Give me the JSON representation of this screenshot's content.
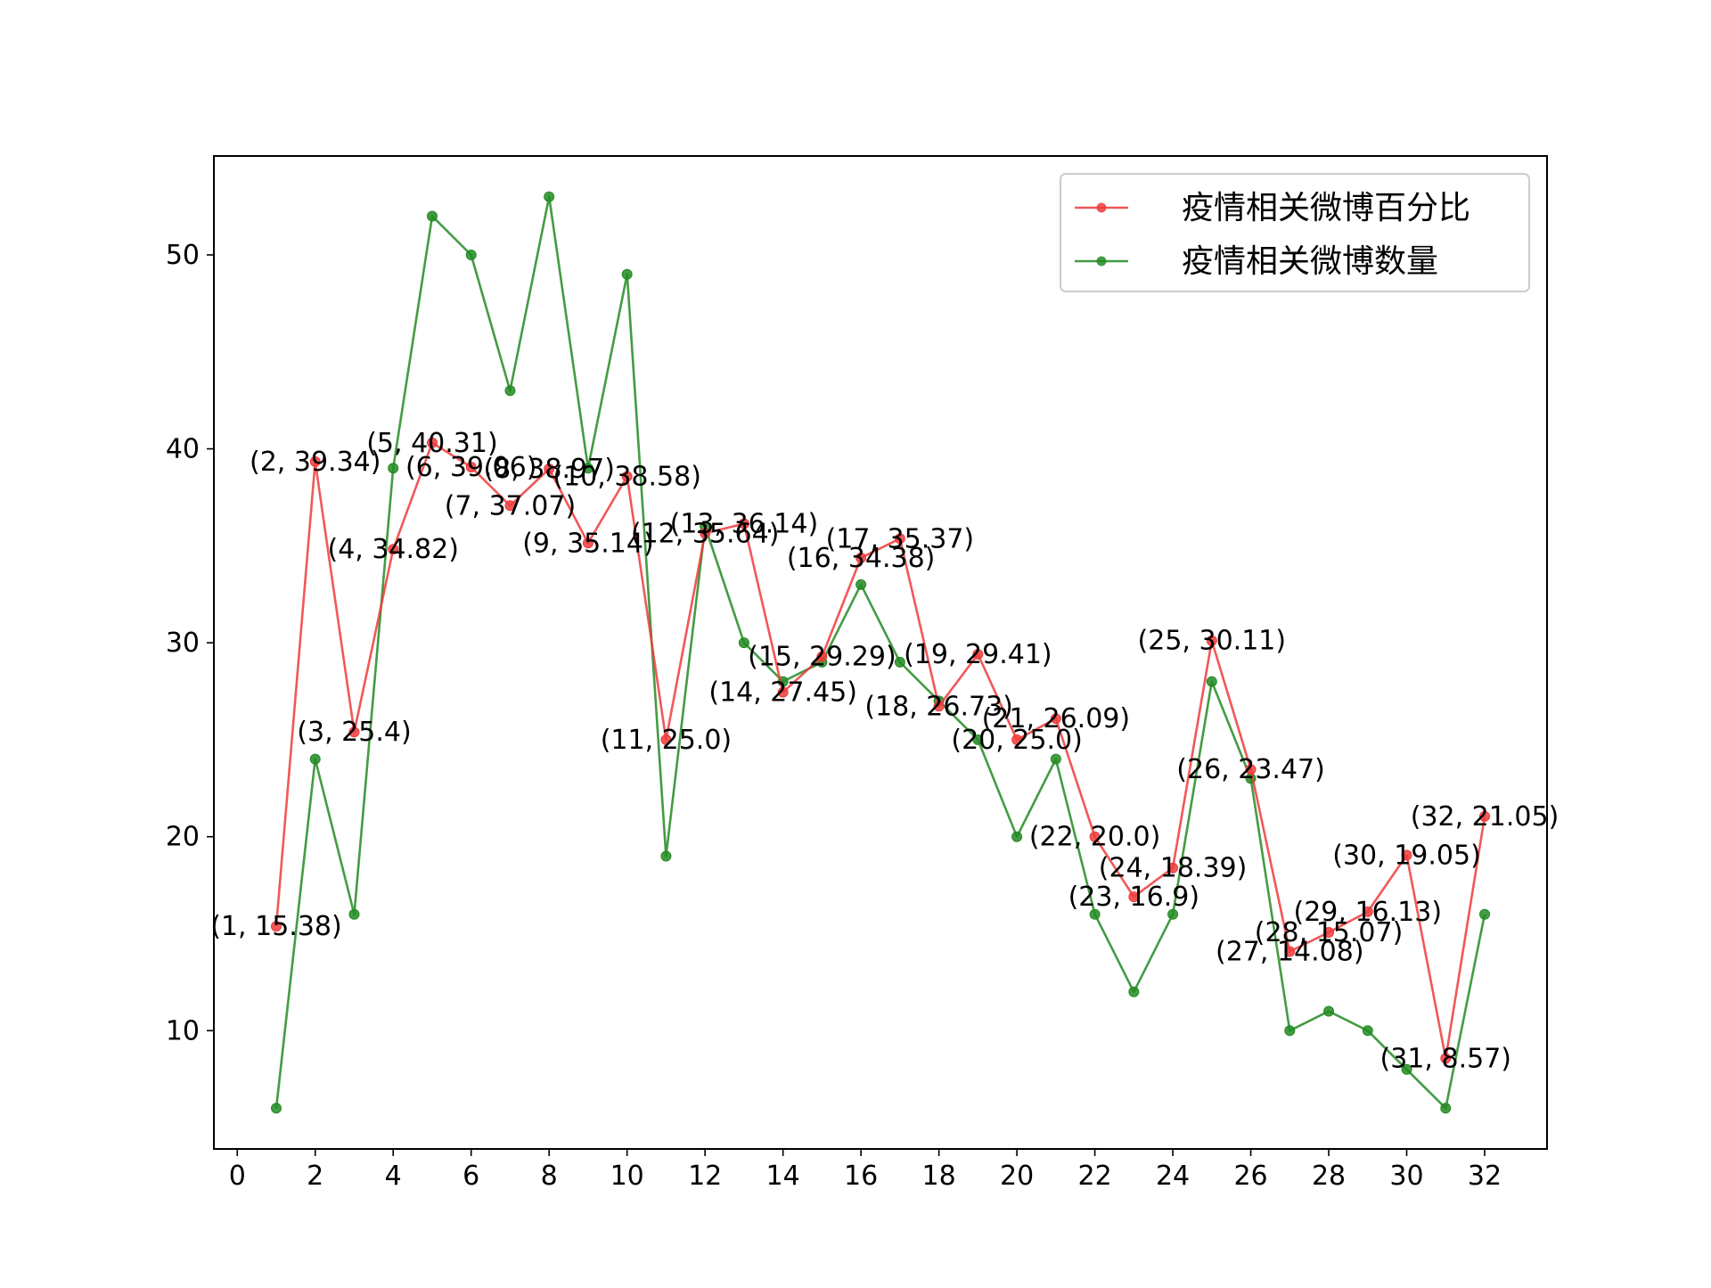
{
  "chart_data": {
    "type": "line",
    "title": "",
    "xlabel": "",
    "ylabel": "",
    "xlim": [
      -0.6,
      33.6
    ],
    "ylim": [
      3.9,
      55.1
    ],
    "xticks": [
      0,
      2,
      4,
      6,
      8,
      10,
      12,
      14,
      16,
      18,
      20,
      22,
      24,
      26,
      28,
      30,
      32
    ],
    "yticks": [
      10,
      20,
      30,
      40,
      50
    ],
    "grid": false,
    "legend_position": "upper right",
    "x": [
      1,
      2,
      3,
      4,
      5,
      6,
      7,
      8,
      9,
      10,
      11,
      12,
      13,
      14,
      15,
      16,
      17,
      18,
      19,
      20,
      21,
      22,
      23,
      24,
      25,
      26,
      27,
      28,
      29,
      30,
      31,
      32
    ],
    "series": [
      {
        "name": "疫情相关微博百分比",
        "color": "#ee3b3b",
        "values": [
          15.38,
          39.34,
          25.4,
          34.82,
          40.31,
          39.06,
          37.07,
          38.97,
          35.14,
          38.58,
          25.0,
          35.64,
          36.14,
          27.45,
          29.29,
          34.38,
          35.37,
          26.73,
          29.41,
          25.0,
          26.09,
          20.0,
          16.9,
          18.39,
          30.11,
          23.47,
          14.08,
          15.07,
          16.13,
          19.05,
          8.57,
          21.05
        ],
        "point_labels": [
          "(1, 15.38)",
          "(2, 39.34)",
          "(3, 25.4)",
          "(4, 34.82)",
          "(5, 40.31)",
          "(6, 39.06)",
          "(7, 37.07)",
          "(8, 38.97)",
          "(9, 35.14)",
          "(10, 38.58)",
          "(11, 25.0)",
          "(12, 35.64)",
          "(13, 36.14)",
          "(14, 27.45)",
          "(15, 29.29)",
          "(16, 34.38)",
          "(17, 35.37)",
          "(18, 26.73)",
          "(19, 29.41)",
          "(20, 25.0)",
          "(21, 26.09)",
          "(22, 20.0)",
          "(23, 16.9)",
          "(24, 18.39)",
          "(25, 30.11)",
          "(26, 23.47)",
          "(27, 14.08)",
          "(28, 15.07)",
          "(29, 16.13)",
          "(30, 19.05)",
          "(31, 8.57)",
          "(32, 21.05)"
        ]
      },
      {
        "name": "疫情相关微博数量",
        "color": "#228b22",
        "values": [
          6,
          24,
          16,
          39,
          52,
          50,
          43,
          53,
          39,
          49,
          19,
          36,
          30,
          28,
          29,
          33,
          29,
          27,
          25,
          20,
          24,
          16,
          12,
          16,
          28,
          23,
          10,
          11,
          10,
          8,
          6,
          16
        ]
      }
    ]
  }
}
